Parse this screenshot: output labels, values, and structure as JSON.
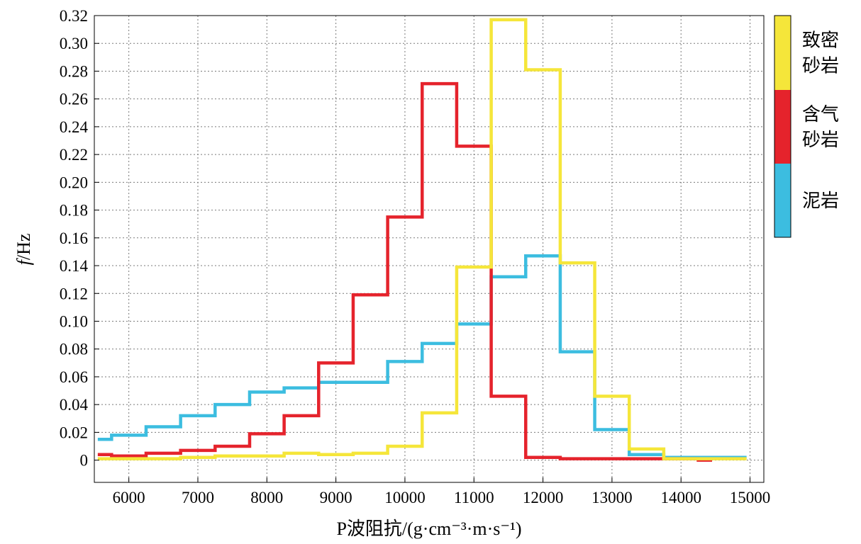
{
  "chart_data": {
    "type": "line",
    "step": true,
    "xlabel": "P波阻抗/(g·cm⁻³·m·s⁻¹)",
    "ylabel_italic": "f",
    "ylabel_rest": "/Hz",
    "xlim": [
      5500,
      15200
    ],
    "ylim": [
      -0.016,
      0.32
    ],
    "xticks": [
      6000,
      7000,
      8000,
      9000,
      10000,
      11000,
      12000,
      13000,
      14000,
      15000
    ],
    "yticks": [
      0,
      0.02,
      0.04,
      0.06,
      0.08,
      0.1,
      0.12,
      0.14,
      0.16,
      0.18,
      0.2,
      0.22,
      0.24,
      0.26,
      0.28,
      0.3,
      0.32
    ],
    "ytick_labels": [
      "0",
      "0.02",
      "0.04",
      "0.06",
      "0.08",
      "0.10",
      "0.12",
      "0.14",
      "0.16",
      "0.18",
      "0.20",
      "0.22",
      "0.24",
      "0.26",
      "0.28",
      "0.30",
      "0.32"
    ],
    "grid": true,
    "legend_position": "right",
    "series": [
      {
        "name": "泥岩",
        "color": "#3cbde0",
        "x": [
          5550,
          5750,
          6250,
          6750,
          7250,
          7750,
          8250,
          8750,
          9250,
          9750,
          10250,
          10750,
          11250,
          11750,
          12250,
          12750,
          13250,
          13750,
          14250,
          14950
        ],
        "y": [
          0.015,
          0.018,
          0.024,
          0.032,
          0.04,
          0.049,
          0.052,
          0.056,
          0.056,
          0.071,
          0.084,
          0.098,
          0.132,
          0.147,
          0.078,
          0.022,
          0.004,
          0.002,
          0.002,
          0.002
        ]
      },
      {
        "name": "含气砂岩",
        "color": "#e5232c",
        "x": [
          5550,
          5750,
          6250,
          6750,
          7250,
          7750,
          8250,
          8750,
          9250,
          9750,
          10250,
          10750,
          11250,
          11750,
          12250,
          12750,
          13250,
          13750,
          14250,
          14450
        ],
        "y": [
          0.004,
          0.003,
          0.005,
          0.007,
          0.01,
          0.019,
          0.032,
          0.07,
          0.119,
          0.175,
          0.271,
          0.226,
          0.046,
          0.002,
          0.001,
          0.001,
          0.001,
          0.001,
          0.0,
          0.0
        ]
      },
      {
        "name": "致密砂岩",
        "color": "#f5e63a",
        "x": [
          5550,
          5750,
          6250,
          6750,
          7250,
          7750,
          8250,
          8750,
          9250,
          9750,
          10250,
          10750,
          11250,
          11750,
          12250,
          12750,
          13250,
          13750,
          14250,
          14950
        ],
        "y": [
          0.001,
          0.001,
          0.001,
          0.002,
          0.003,
          0.003,
          0.005,
          0.004,
          0.005,
          0.01,
          0.034,
          0.139,
          0.317,
          0.281,
          0.142,
          0.046,
          0.008,
          0.001,
          0.001,
          0.001
        ]
      }
    ],
    "legend_order": [
      {
        "name_lines": [
          "致密",
          "砂岩"
        ],
        "color": "#f5e63a"
      },
      {
        "name_lines": [
          "含气",
          "砂岩"
        ],
        "color": "#e5232c"
      },
      {
        "name_lines": [
          "泥岩"
        ],
        "color": "#3cbde0"
      }
    ]
  }
}
